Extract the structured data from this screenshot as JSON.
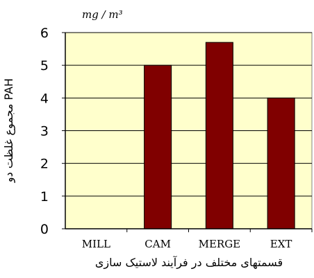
{
  "chart_data": {
    "type": "bar",
    "categories": [
      "MILL",
      "CAM",
      "MERGE",
      "EXT"
    ],
    "values": [
      0,
      5.0,
      5.7,
      4.0
    ],
    "unit_label": "mg / m³",
    "xlabel": "قسمتهای مختلف در فرآیند لاستیک سازی",
    "ylabel": "مجموع غلظت دو PAH",
    "ylim": [
      0,
      6
    ],
    "yticks": [
      0,
      1,
      2,
      3,
      4,
      5,
      6
    ],
    "grid": true,
    "legend": "none"
  },
  "colors": {
    "plot_background": "#FFFFCC",
    "bar_fill": "#800000",
    "grid": "#000000"
  }
}
